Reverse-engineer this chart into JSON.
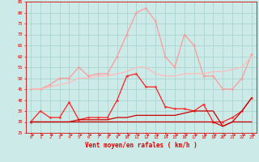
{
  "xlabel": "Vent moyen/en rafales ( km/h )",
  "xlim": [
    -0.5,
    23.5
  ],
  "ylim": [
    25,
    85
  ],
  "yticks": [
    25,
    30,
    35,
    40,
    45,
    50,
    55,
    60,
    65,
    70,
    75,
    80,
    85
  ],
  "xticks": [
    0,
    1,
    2,
    3,
    4,
    5,
    6,
    7,
    8,
    9,
    10,
    11,
    12,
    13,
    14,
    15,
    16,
    17,
    18,
    19,
    20,
    21,
    22,
    23
  ],
  "bg_color": "#cceae7",
  "grid_color": "#aad4d0",
  "series": [
    {
      "x": [
        0,
        1,
        2,
        3,
        4,
        5,
        6,
        7,
        8,
        9,
        10,
        11,
        12,
        13,
        14,
        15,
        16,
        17,
        18,
        19,
        20,
        21,
        22,
        23
      ],
      "y": [
        45,
        45,
        47,
        50,
        50,
        55,
        51,
        52,
        52,
        60,
        70,
        80,
        82,
        76,
        60,
        55,
        70,
        65,
        51,
        51,
        45,
        45,
        50,
        61
      ],
      "color": "#ff9999",
      "lw": 0.9,
      "marker": "*",
      "ms": 3.0
    },
    {
      "x": [
        0,
        1,
        2,
        3,
        4,
        5,
        6,
        7,
        8,
        9,
        10,
        11,
        12,
        13,
        14,
        15,
        16,
        17,
        18,
        19,
        20,
        21,
        22,
        23
      ],
      "y": [
        45,
        45,
        46,
        47,
        48,
        50,
        50,
        51,
        51,
        52,
        53,
        55,
        55,
        52,
        51,
        51,
        52,
        52,
        52,
        53,
        53,
        54,
        55,
        60
      ],
      "color": "#ffbbbb",
      "lw": 0.9,
      "marker": null,
      "ms": 0
    },
    {
      "x": [
        0,
        1,
        2,
        3,
        4,
        5,
        6,
        7,
        8,
        9,
        10,
        11,
        12,
        13,
        14,
        15,
        16,
        17,
        18,
        19,
        20,
        21,
        22,
        23
      ],
      "y": [
        30,
        35,
        32,
        32,
        39,
        31,
        32,
        32,
        32,
        40,
        51,
        52,
        46,
        46,
        37,
        36,
        36,
        35,
        38,
        30,
        30,
        32,
        35,
        41
      ],
      "color": "#ff2222",
      "lw": 0.9,
      "marker": "*",
      "ms": 3.0
    },
    {
      "x": [
        0,
        1,
        2,
        3,
        4,
        5,
        6,
        7,
        8,
        9,
        10,
        11,
        12,
        13,
        14,
        15,
        16,
        17,
        18,
        19,
        20,
        21,
        22,
        23
      ],
      "y": [
        30,
        30,
        30,
        30,
        30,
        31,
        31,
        31,
        31,
        32,
        32,
        33,
        33,
        33,
        33,
        33,
        34,
        35,
        35,
        35,
        28,
        30,
        35,
        41
      ],
      "color": "#cc0000",
      "lw": 0.9,
      "marker": null,
      "ms": 0
    },
    {
      "x": [
        0,
        1,
        2,
        3,
        4,
        5,
        6,
        7,
        8,
        9,
        10,
        11,
        12,
        13,
        14,
        15,
        16,
        17,
        18,
        19,
        20,
        21,
        22,
        23
      ],
      "y": [
        30,
        30,
        30,
        30,
        30,
        30,
        30,
        30,
        30,
        30,
        30,
        30,
        30,
        30,
        30,
        30,
        30,
        30,
        30,
        30,
        28,
        30,
        30,
        30
      ],
      "color": "#cc0000",
      "lw": 0.9,
      "marker": null,
      "ms": 0
    }
  ],
  "arrow_color": "#dd0000",
  "xlabel_fontsize": 5.5,
  "tick_fontsize": 4.0
}
